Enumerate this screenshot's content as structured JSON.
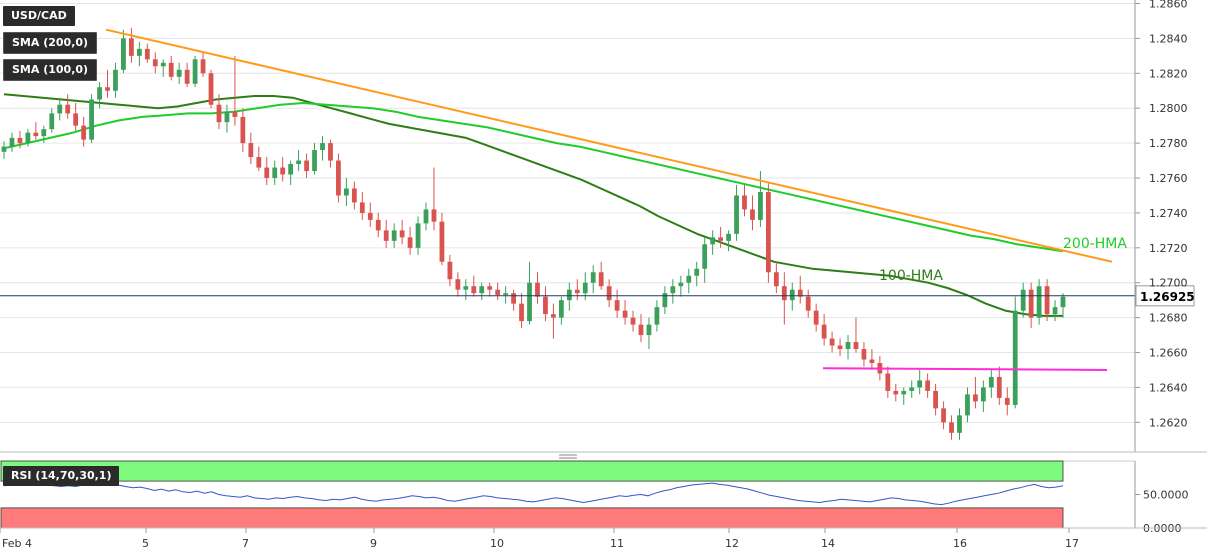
{
  "symbol": "USD/CAD",
  "indicators": {
    "sma200": "SMA (200,0)",
    "sma100": "SMA (100,0)",
    "rsi": "RSI (14,70,30,1)"
  },
  "annotations": {
    "hma100": "100-HMA",
    "hma200": "200-HMA"
  },
  "colors": {
    "up": "#3aa05a",
    "down": "#d9534f",
    "hma100": "#2e7d16",
    "hma200": "#1fcc2a",
    "trendline": "#ff9a1a",
    "support": "#ff2cd8",
    "rsi_line": "#3355cc",
    "rsi_overbought": "#7dfa7d",
    "rsi_oversold": "#ff7b7b"
  },
  "chart_data": {
    "type": "candlestick",
    "y_axis": {
      "range": [
        1.2603,
        1.2862
      ],
      "ticks": [
        "1.2860",
        "1.2840",
        "1.2820",
        "1.2800",
        "1.2780",
        "1.2760",
        "1.2740",
        "1.2720",
        "1.2700",
        "1.2680",
        "1.2660",
        "1.2640",
        "1.2620"
      ]
    },
    "x_axis": {
      "ticks": [
        "Feb 4",
        "5",
        "7",
        "9",
        "10",
        "11",
        "12",
        "14",
        "16",
        "17"
      ]
    },
    "current_price": "1.26925",
    "candles": [
      [
        1.2775,
        1.2781,
        1.2771,
        1.2778
      ],
      [
        1.2778,
        1.2786,
        1.2775,
        1.2783
      ],
      [
        1.2783,
        1.2787,
        1.2777,
        1.278
      ],
      [
        1.278,
        1.2788,
        1.2778,
        1.2786
      ],
      [
        1.2786,
        1.2792,
        1.2782,
        1.2784
      ],
      [
        1.2784,
        1.279,
        1.278,
        1.2788
      ],
      [
        1.2788,
        1.28,
        1.2786,
        1.2797
      ],
      [
        1.2797,
        1.2806,
        1.2793,
        1.2802
      ],
      [
        1.2802,
        1.2808,
        1.2794,
        1.2797
      ],
      [
        1.2797,
        1.2803,
        1.2787,
        1.279
      ],
      [
        1.279,
        1.2795,
        1.2778,
        1.2782
      ],
      [
        1.2782,
        1.2808,
        1.278,
        1.2805
      ],
      [
        1.2805,
        1.2815,
        1.28,
        1.2812
      ],
      [
        1.2812,
        1.2822,
        1.2806,
        1.281
      ],
      [
        1.281,
        1.2826,
        1.2806,
        1.2822
      ],
      [
        1.2822,
        1.2845,
        1.282,
        1.284
      ],
      [
        1.284,
        1.2846,
        1.2826,
        1.283
      ],
      [
        1.283,
        1.2838,
        1.2824,
        1.2834
      ],
      [
        1.2834,
        1.2837,
        1.2826,
        1.2828
      ],
      [
        1.2828,
        1.2832,
        1.282,
        1.2824
      ],
      [
        1.2824,
        1.2828,
        1.2818,
        1.2826
      ],
      [
        1.2826,
        1.283,
        1.2816,
        1.2818
      ],
      [
        1.2818,
        1.2826,
        1.2814,
        1.2822
      ],
      [
        1.2822,
        1.2826,
        1.2812,
        1.2814
      ],
      [
        1.2814,
        1.283,
        1.2812,
        1.2828
      ],
      [
        1.2828,
        1.2832,
        1.2818,
        1.282
      ],
      [
        1.282,
        1.2822,
        1.28,
        1.2802
      ],
      [
        1.2802,
        1.2808,
        1.2788,
        1.2792
      ],
      [
        1.2792,
        1.2802,
        1.2786,
        1.2798
      ],
      [
        1.2798,
        1.283,
        1.279,
        1.2795
      ],
      [
        1.2795,
        1.28,
        1.2775,
        1.278
      ],
      [
        1.278,
        1.2786,
        1.2768,
        1.2772
      ],
      [
        1.2772,
        1.2778,
        1.2764,
        1.2766
      ],
      [
        1.2766,
        1.2772,
        1.2756,
        1.276
      ],
      [
        1.276,
        1.277,
        1.2756,
        1.2766
      ],
      [
        1.2766,
        1.2772,
        1.2758,
        1.2762
      ],
      [
        1.2762,
        1.277,
        1.2756,
        1.2768
      ],
      [
        1.2768,
        1.2776,
        1.2764,
        1.277
      ],
      [
        1.277,
        1.2774,
        1.276,
        1.2764
      ],
      [
        1.2764,
        1.278,
        1.2762,
        1.2776
      ],
      [
        1.2776,
        1.2784,
        1.277,
        1.278
      ],
      [
        1.278,
        1.2782,
        1.2766,
        1.277
      ],
      [
        1.277,
        1.2774,
        1.2746,
        1.275
      ],
      [
        1.275,
        1.276,
        1.2744,
        1.2754
      ],
      [
        1.2754,
        1.2758,
        1.2742,
        1.2746
      ],
      [
        1.2746,
        1.2752,
        1.2736,
        1.274
      ],
      [
        1.274,
        1.2746,
        1.2732,
        1.2736
      ],
      [
        1.2736,
        1.274,
        1.2726,
        1.273
      ],
      [
        1.273,
        1.2736,
        1.272,
        1.2724
      ],
      [
        1.2724,
        1.2734,
        1.272,
        1.273
      ],
      [
        1.273,
        1.2736,
        1.2722,
        1.2726
      ],
      [
        1.2726,
        1.2732,
        1.2716,
        1.272
      ],
      [
        1.272,
        1.2738,
        1.2716,
        1.2734
      ],
      [
        1.2734,
        1.2746,
        1.273,
        1.2742
      ],
      [
        1.2742,
        1.2766,
        1.273,
        1.2735
      ],
      [
        1.2735,
        1.274,
        1.271,
        1.2712
      ],
      [
        1.2712,
        1.2716,
        1.2698,
        1.2702
      ],
      [
        1.2702,
        1.2706,
        1.2692,
        1.2696
      ],
      [
        1.2696,
        1.2702,
        1.269,
        1.2698
      ],
      [
        1.2698,
        1.2704,
        1.2692,
        1.2694
      ],
      [
        1.2694,
        1.27,
        1.269,
        1.2698
      ],
      [
        1.2698,
        1.27,
        1.2692,
        1.2696
      ],
      [
        1.2696,
        1.27,
        1.269,
        1.2693
      ],
      [
        1.2693,
        1.2698,
        1.2688,
        1.2694
      ],
      [
        1.2694,
        1.2696,
        1.2684,
        1.2688
      ],
      [
        1.2688,
        1.2694,
        1.2674,
        1.2678
      ],
      [
        1.2678,
        1.2712,
        1.2676,
        1.27
      ],
      [
        1.27,
        1.2706,
        1.2688,
        1.2692
      ],
      [
        1.2692,
        1.2698,
        1.2678,
        1.2682
      ],
      [
        1.2682,
        1.2688,
        1.2668,
        1.268
      ],
      [
        1.268,
        1.2692,
        1.2676,
        1.269
      ],
      [
        1.269,
        1.27,
        1.2684,
        1.2696
      ],
      [
        1.2696,
        1.2702,
        1.269,
        1.2694
      ],
      [
        1.2694,
        1.2706,
        1.269,
        1.27
      ],
      [
        1.27,
        1.271,
        1.2694,
        1.2706
      ],
      [
        1.2706,
        1.2712,
        1.2696,
        1.2698
      ],
      [
        1.2698,
        1.2702,
        1.2686,
        1.269
      ],
      [
        1.269,
        1.2696,
        1.268,
        1.2684
      ],
      [
        1.2684,
        1.269,
        1.2676,
        1.268
      ],
      [
        1.268,
        1.2684,
        1.2672,
        1.2676
      ],
      [
        1.2676,
        1.2682,
        1.2666,
        1.267
      ],
      [
        1.267,
        1.268,
        1.2662,
        1.2676
      ],
      [
        1.2676,
        1.269,
        1.2672,
        1.2686
      ],
      [
        1.2686,
        1.2698,
        1.2682,
        1.2694
      ],
      [
        1.2694,
        1.2702,
        1.2688,
        1.2698
      ],
      [
        1.2698,
        1.2704,
        1.2692,
        1.27
      ],
      [
        1.27,
        1.2708,
        1.2694,
        1.2704
      ],
      [
        1.2704,
        1.2712,
        1.2698,
        1.2708
      ],
      [
        1.2708,
        1.2726,
        1.27,
        1.2722
      ],
      [
        1.2722,
        1.273,
        1.2716,
        1.2726
      ],
      [
        1.2726,
        1.2732,
        1.272,
        1.2724
      ],
      [
        1.2724,
        1.273,
        1.2718,
        1.2728
      ],
      [
        1.2728,
        1.2756,
        1.2724,
        1.275
      ],
      [
        1.275,
        1.2756,
        1.2738,
        1.2742
      ],
      [
        1.2742,
        1.275,
        1.273,
        1.2736
      ],
      [
        1.2736,
        1.2764,
        1.2732,
        1.2752
      ],
      [
        1.2752,
        1.2758,
        1.27,
        1.2706
      ],
      [
        1.2706,
        1.2712,
        1.2694,
        1.2698
      ],
      [
        1.2698,
        1.2706,
        1.2676,
        1.269
      ],
      [
        1.269,
        1.27,
        1.2684,
        1.2696
      ],
      [
        1.2696,
        1.2704,
        1.2688,
        1.2692
      ],
      [
        1.2692,
        1.2696,
        1.268,
        1.2684
      ],
      [
        1.2684,
        1.2688,
        1.2672,
        1.2676
      ],
      [
        1.2676,
        1.2682,
        1.2664,
        1.2668
      ],
      [
        1.2668,
        1.2672,
        1.266,
        1.2664
      ],
      [
        1.2664,
        1.2668,
        1.2658,
        1.2662
      ],
      [
        1.2662,
        1.267,
        1.2656,
        1.2666
      ],
      [
        1.2666,
        1.268,
        1.266,
        1.2662
      ],
      [
        1.2662,
        1.2666,
        1.2652,
        1.2656
      ],
      [
        1.2656,
        1.2662,
        1.265,
        1.2654
      ],
      [
        1.2654,
        1.2658,
        1.2644,
        1.2648
      ],
      [
        1.2648,
        1.2652,
        1.2634,
        1.2638
      ],
      [
        1.2638,
        1.2642,
        1.2632,
        1.2636
      ],
      [
        1.2636,
        1.264,
        1.263,
        1.2638
      ],
      [
        1.2638,
        1.2644,
        1.2634,
        1.264
      ],
      [
        1.264,
        1.265,
        1.2636,
        1.2644
      ],
      [
        1.2644,
        1.2648,
        1.2634,
        1.2638
      ],
      [
        1.2638,
        1.2642,
        1.2624,
        1.2628
      ],
      [
        1.2628,
        1.2632,
        1.2616,
        1.262
      ],
      [
        1.262,
        1.2624,
        1.261,
        1.2614
      ],
      [
        1.2614,
        1.2628,
        1.261,
        1.2624
      ],
      [
        1.2624,
        1.264,
        1.262,
        1.2636
      ],
      [
        1.2636,
        1.2646,
        1.2628,
        1.2632
      ],
      [
        1.2632,
        1.2644,
        1.2626,
        1.264
      ],
      [
        1.264,
        1.265,
        1.2634,
        1.2646
      ],
      [
        1.2646,
        1.2652,
        1.263,
        1.2634
      ],
      [
        1.2634,
        1.264,
        1.2624,
        1.263
      ],
      [
        1.263,
        1.2692,
        1.2628,
        1.2684
      ],
      [
        1.2684,
        1.27,
        1.268,
        1.2696
      ],
      [
        1.2696,
        1.27,
        1.2674,
        1.268
      ],
      [
        1.268,
        1.2702,
        1.2676,
        1.2698
      ],
      [
        1.2698,
        1.2702,
        1.2678,
        1.2682
      ],
      [
        1.2682,
        1.269,
        1.2678,
        1.2686
      ],
      [
        1.2686,
        1.2694,
        1.268,
        1.2692
      ]
    ],
    "series": [
      {
        "name": "100-HMA",
        "y": [
          1.2808,
          1.2807,
          1.2806,
          1.2805,
          1.2804,
          1.2803,
          1.2802,
          1.2801,
          1.28,
          1.2801,
          1.2803,
          1.2805,
          1.2806,
          1.2807,
          1.2807,
          1.2806,
          1.2803,
          1.28,
          1.2797,
          1.2794,
          1.2791,
          1.2789,
          1.2787,
          1.2785,
          1.2783,
          1.2779,
          1.2775,
          1.2771,
          1.2767,
          1.2763,
          1.2759,
          1.2754,
          1.2749,
          1.2744,
          1.2738,
          1.2733,
          1.2728,
          1.2724,
          1.272,
          1.2716,
          1.2712,
          1.271,
          1.2708,
          1.2707,
          1.2706,
          1.2705,
          1.2704,
          1.2702,
          1.27,
          1.2697,
          1.2693,
          1.2688,
          1.2684,
          1.2682,
          1.2681,
          1.2681
        ]
      },
      {
        "name": "200-HMA",
        "y": [
          1.2777,
          1.278,
          1.2783,
          1.2786,
          1.279,
          1.2793,
          1.2795,
          1.2796,
          1.2797,
          1.2797,
          1.2798,
          1.28,
          1.2802,
          1.2803,
          1.2802,
          1.2801,
          1.28,
          1.2798,
          1.2795,
          1.2793,
          1.2791,
          1.2789,
          1.2786,
          1.2783,
          1.278,
          1.2778,
          1.2775,
          1.2772,
          1.2769,
          1.2766,
          1.2763,
          1.276,
          1.2757,
          1.2754,
          1.2751,
          1.2748,
          1.2745,
          1.2742,
          1.2739,
          1.2736,
          1.2733,
          1.273,
          1.2727,
          1.2725,
          1.2722,
          1.272,
          1.2718
        ]
      },
      {
        "name": "trendline",
        "y": [
          1.2845,
          1.2712
        ]
      },
      {
        "name": "support",
        "y": [
          1.2651,
          1.265
        ]
      }
    ],
    "rsi": {
      "range": [
        0,
        100
      ],
      "overbought": 70,
      "oversold": 30,
      "ticks": [
        "50.0000",
        "0.0000"
      ],
      "values": [
        63,
        64,
        65,
        64,
        66,
        65,
        64,
        63,
        62,
        63,
        62,
        64,
        66,
        68,
        67,
        66,
        64,
        62,
        60,
        61,
        59,
        56,
        58,
        55,
        57,
        54,
        53,
        55,
        52,
        54,
        50,
        48,
        47,
        46,
        48,
        45,
        44,
        43,
        45,
        44,
        46,
        47,
        45,
        44,
        42,
        41,
        43,
        42,
        44,
        46,
        43,
        41,
        40,
        42,
        43,
        44,
        46,
        48,
        47,
        45,
        46,
        44,
        41,
        40,
        42,
        44,
        46,
        48,
        47,
        45,
        44,
        43,
        42,
        40,
        39,
        41,
        43,
        45,
        44,
        42,
        40,
        38,
        40,
        42,
        44,
        46,
        48,
        47,
        49,
        50,
        48,
        52,
        55,
        57,
        60,
        62,
        64,
        65,
        66,
        67,
        65,
        64,
        62,
        60,
        58,
        55,
        52,
        49,
        47,
        45,
        43,
        41,
        40,
        39,
        38,
        40,
        41,
        43,
        42,
        41,
        40,
        39,
        41,
        43,
        45,
        44,
        42,
        41,
        40,
        38,
        36,
        35,
        37,
        40,
        42,
        44,
        46,
        48,
        50,
        52,
        55,
        58,
        60,
        63,
        65,
        62,
        60,
        61,
        63
      ]
    }
  }
}
